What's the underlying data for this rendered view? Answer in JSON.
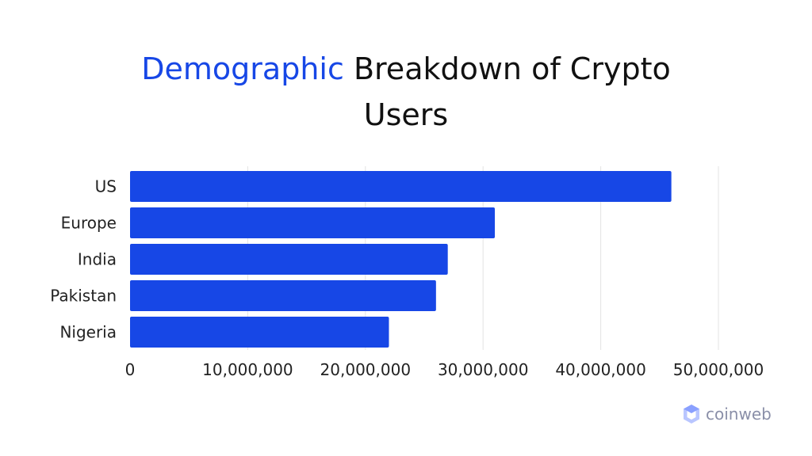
{
  "title": {
    "highlight": "Demographic",
    "rest_line1": "Breakdown of Crypto",
    "line2": "Users"
  },
  "colors": {
    "bar": "#1747e6",
    "highlight": "#1747e6",
    "grid": "#e3e3e3",
    "text": "#222222",
    "logo": "#8a8fa8"
  },
  "chart_data": {
    "type": "bar",
    "orientation": "horizontal",
    "categories": [
      "US",
      "Europe",
      "India",
      "Pakistan",
      "Nigeria"
    ],
    "values": [
      46000000,
      31000000,
      27000000,
      26000000,
      22000000
    ],
    "xlim": [
      0,
      50000000
    ],
    "xticks": [
      "0",
      "10,000,000",
      "20,000,000",
      "30,000,000",
      "40,000,000",
      "50,000,000"
    ],
    "xtick_values": [
      0,
      10000000,
      20000000,
      30000000,
      40000000,
      50000000
    ],
    "grid": true,
    "xlabel": "",
    "ylabel": ""
  },
  "logo": {
    "text": "coinweb",
    "icon": "coinweb-logo-icon"
  }
}
